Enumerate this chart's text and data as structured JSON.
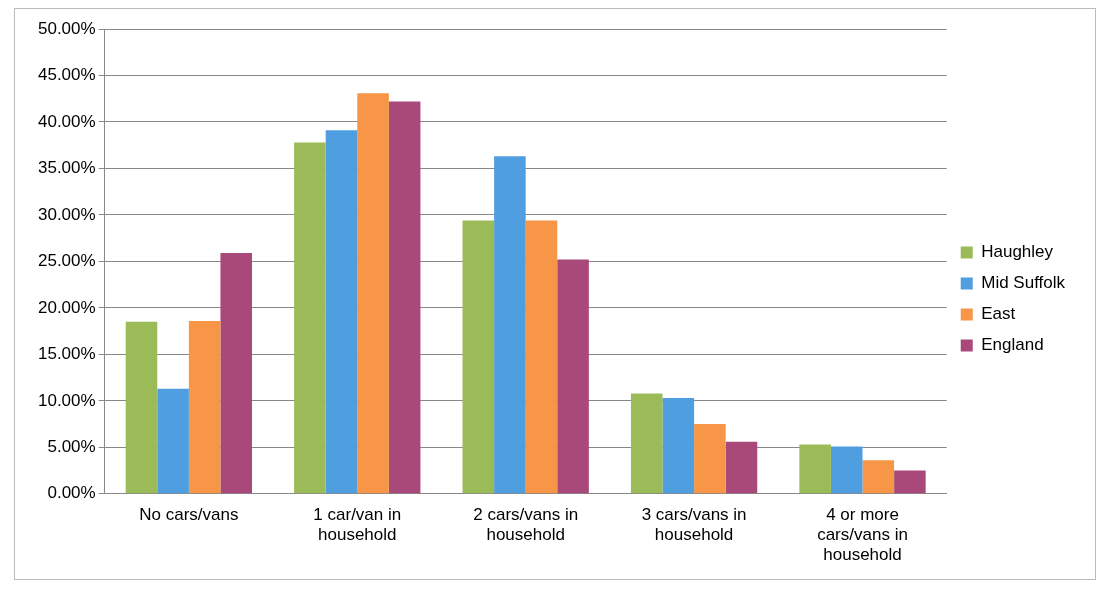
{
  "chart_data": {
    "type": "bar",
    "categories": [
      "No cars/vans",
      "1 car/van in household",
      "2 cars/vans in household",
      "3 cars/vans in household",
      "4 or more cars/vans in household"
    ],
    "series": [
      {
        "name": "Haughley",
        "color": "#9bbb59",
        "values": [
          18.5,
          37.8,
          29.4,
          10.8,
          5.3
        ]
      },
      {
        "name": "Mid Suffolk",
        "color": "#4f9ee0",
        "values": [
          11.3,
          39.1,
          36.3,
          10.3,
          5.1
        ]
      },
      {
        "name": "East",
        "color": "#f79646",
        "values": [
          18.6,
          43.1,
          29.4,
          7.5,
          3.6
        ]
      },
      {
        "name": "England",
        "color": "#a8497a",
        "values": [
          25.9,
          42.2,
          25.2,
          5.6,
          2.5
        ]
      }
    ],
    "ylim": [
      0,
      50
    ],
    "yticks": [
      {
        "value": 0,
        "label": "0.00%"
      },
      {
        "value": 5,
        "label": "5.00%"
      },
      {
        "value": 10,
        "label": "10.00%"
      },
      {
        "value": 15,
        "label": "15.00%"
      },
      {
        "value": 20,
        "label": "20.00%"
      },
      {
        "value": 25,
        "label": "25.00%"
      },
      {
        "value": 30,
        "label": "30.00%"
      },
      {
        "value": 35,
        "label": "35.00%"
      },
      {
        "value": 40,
        "label": "40.00%"
      },
      {
        "value": 45,
        "label": "45.00%"
      },
      {
        "value": 50,
        "label": "50.00%"
      }
    ],
    "grid": "y",
    "legend": "right"
  }
}
